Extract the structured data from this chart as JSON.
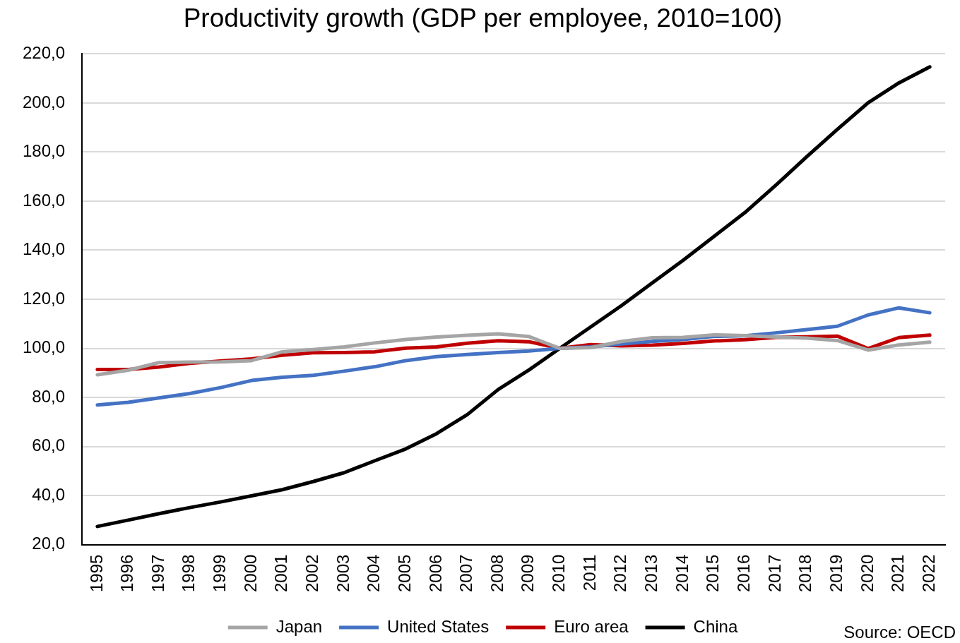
{
  "chart_data": {
    "type": "line",
    "title": "Productivity growth (GDP per employee, 2010=100)",
    "categories": [
      "1995",
      "1996",
      "1997",
      "1998",
      "1999",
      "2000",
      "2001",
      "2002",
      "2003",
      "2004",
      "2005",
      "2006",
      "2007",
      "2008",
      "2009",
      "2010",
      "2011",
      "2012",
      "2013",
      "2014",
      "2015",
      "2016",
      "2017",
      "2018",
      "2019",
      "2020",
      "2021",
      "2022"
    ],
    "series": [
      {
        "name": "Japan",
        "color": "#a5a5a5",
        "values": [
          89.2,
          91.1,
          94.2,
          94.4,
          94.5,
          95.0,
          98.6,
          99.5,
          100.6,
          102.2,
          103.6,
          104.6,
          105.3,
          105.9,
          104.8,
          100.0,
          100.3,
          102.8,
          104.3,
          104.5,
          105.5,
          105.2,
          104.6,
          104.2,
          103.2,
          99.3,
          101.4,
          102.5
        ]
      },
      {
        "name": "United States",
        "color": "#4472c4",
        "values": [
          76.9,
          78.0,
          79.8,
          81.6,
          84.0,
          86.9,
          88.2,
          89.0,
          90.7,
          92.5,
          95.0,
          96.6,
          97.5,
          98.3,
          98.9,
          100.0,
          100.6,
          101.8,
          102.8,
          103.6,
          104.9,
          105.1,
          106.3,
          107.6,
          109.0,
          113.6,
          116.5,
          114.5
        ]
      },
      {
        "name": "Euro area",
        "color": "#c00000",
        "values": [
          91.4,
          91.4,
          92.4,
          93.9,
          94.8,
          95.7,
          97.2,
          98.2,
          98.3,
          98.6,
          100.1,
          100.6,
          102.1,
          103.1,
          102.7,
          100.0,
          101.5,
          101.0,
          101.3,
          102.0,
          103.0,
          103.5,
          104.5,
          104.7,
          105.0,
          99.9,
          104.4,
          105.4
        ]
      },
      {
        "name": "China",
        "color": "#000000",
        "values": [
          27.4,
          30.0,
          32.6,
          35.1,
          37.4,
          39.9,
          42.4,
          45.7,
          49.3,
          54.2,
          59.0,
          65.2,
          73.0,
          83.2,
          91.2,
          100.0,
          108.7,
          117.4,
          126.7,
          135.9,
          145.6,
          155.3,
          166.4,
          178.0,
          189.2,
          200.1,
          208.2,
          214.7
        ]
      }
    ],
    "ylim": [
      20,
      220
    ],
    "yticks": [
      {
        "value": 20,
        "label": "20,0"
      },
      {
        "value": 40,
        "label": "40,0"
      },
      {
        "value": 60,
        "label": "60,0"
      },
      {
        "value": 80,
        "label": "80,0"
      },
      {
        "value": 100,
        "label": "100,0"
      },
      {
        "value": 120,
        "label": "120,0"
      },
      {
        "value": 140,
        "label": "140,0"
      },
      {
        "value": 160,
        "label": "160,0"
      },
      {
        "value": 180,
        "label": "180,0"
      },
      {
        "value": 200,
        "label": "200,0"
      },
      {
        "value": 220,
        "label": "220,0"
      }
    ],
    "grid": "y",
    "legend": "bottom",
    "marker": "none",
    "annotations": [
      "Source: OECD"
    ]
  }
}
